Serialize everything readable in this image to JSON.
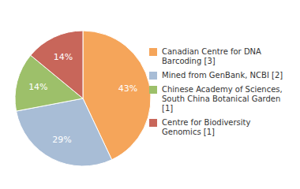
{
  "chart_data": {
    "type": "pie",
    "categories": [
      "Canadian Centre for DNA\nBarcoding [3]",
      "Mined from GenBank, NCBI [2]",
      "Chinese Academy of Sciences,\nSouth China Botanical Garden [1]",
      "Centre for Biodiversity\nGenomics [1]"
    ],
    "values": [
      43,
      29,
      14,
      14
    ],
    "value_labels": [
      "43%",
      "29%",
      "14%",
      "14%"
    ],
    "colors": [
      "#F5A55A",
      "#A8BDD6",
      "#9DC06A",
      "#C8665A"
    ],
    "data_labels": true,
    "legend": "right"
  }
}
